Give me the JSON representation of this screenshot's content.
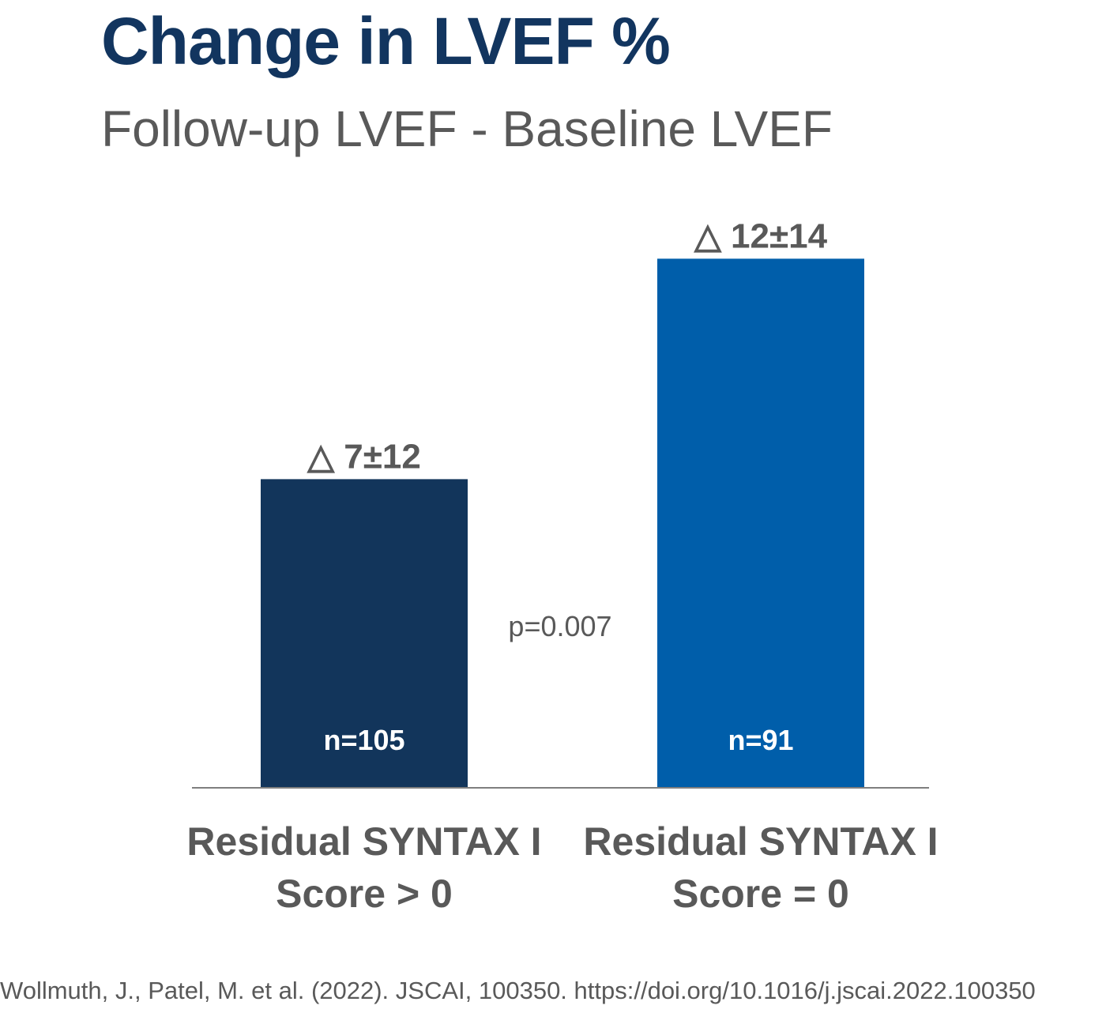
{
  "chart_data": {
    "type": "bar",
    "title": "Change in LVEF %",
    "subtitle": "Follow-up LVEF - Baseline LVEF",
    "categories": [
      [
        "Residual SYNTAX I",
        "Score > 0"
      ],
      [
        "Residual SYNTAX I",
        "Score = 0"
      ]
    ],
    "values": [
      7,
      12
    ],
    "sd": [
      12,
      14
    ],
    "value_labels": [
      "△ 7±12",
      "△ 12±14"
    ],
    "n_labels": [
      "n=105",
      "n=91"
    ],
    "colors": [
      "#12355b",
      "#005eaa"
    ],
    "annotation": "p=0.007",
    "ylim": [
      0,
      13
    ],
    "grid": false,
    "legend": "none"
  },
  "citation": "Wollmuth, J., Patel, M. et al. (2022). JSCAI, 100350. https://doi.org/10.1016/j.jscai.2022.100350"
}
